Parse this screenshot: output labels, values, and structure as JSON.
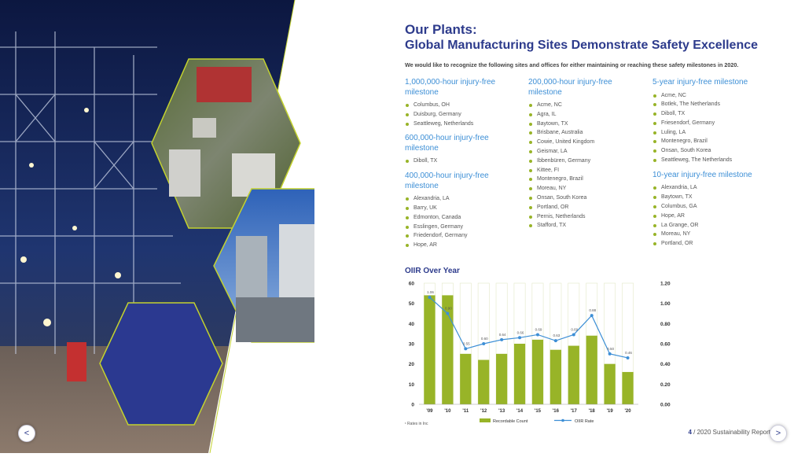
{
  "page": {
    "title": "Our Plants:",
    "subtitle": "Global Manufacturing Sites Demonstrate Safety Excellence",
    "intro": "We would like to recognize the following sites and offices for either maintaining or reaching these safety milestones in 2020."
  },
  "columns": [
    {
      "groups": [
        {
          "heading": "1,000,000-hour injury-free milestone",
          "items": [
            "Columbus, OH",
            "Duisburg, Germany",
            "Seattleweg, Netherlands"
          ]
        },
        {
          "heading": "600,000-hour injury-free milestone",
          "items": [
            "Diboll, TX"
          ]
        },
        {
          "heading": "400,000-hour injury-free milestone",
          "items": [
            "Alexandria, LA",
            "Barry, UK",
            "Edmonton, Canada",
            "Esslingen, Germany",
            "Friedendorf, Germany",
            "Hope, AR"
          ]
        }
      ]
    },
    {
      "groups": [
        {
          "heading": "200,000-hour injury-free milestone",
          "items": [
            "Acme, NC",
            "Agra, IL",
            "Baytown, TX",
            "Brisbane, Australia",
            "Cowie, United Kingdom",
            "Geismar, LA",
            "Ibbenbüren, Germany",
            "Kittee, FI",
            "Montenegro, Brazil",
            "Moreau, NY",
            "Onsan, South Korea",
            "Portland, OR",
            "Pernis, Netherlands",
            "Stafford, TX"
          ]
        }
      ]
    },
    {
      "groups": [
        {
          "heading": "5-year injury-free milestone",
          "items": [
            "Acme, NC",
            "Botlek, The Netherlands",
            "Diboll, TX",
            "Friesendorf, Germany",
            "Luling, LA",
            "Montenegro, Brazil",
            "Onsan, South Korea",
            "Seattleweg, The Netherlands"
          ]
        },
        {
          "heading": "10-year injury-free milestone",
          "items": [
            "Alexandria, LA",
            "Baytown, TX",
            "Columbus, GA",
            "Hope, AR",
            "La Grange, OR",
            "Moreau, NY",
            "Portland, OR"
          ]
        }
      ]
    }
  ],
  "chart_title": "OIIR Over Year",
  "chart_data": {
    "type": "bar",
    "categories": [
      "'09",
      "'10",
      "'11",
      "'12",
      "'13",
      "'14",
      "'15",
      "'16",
      "'17",
      "'18",
      "'19",
      "'20"
    ],
    "left_ticks": [
      "60",
      "50",
      "40",
      "30",
      "20",
      "10",
      "0"
    ],
    "right_ticks": [
      "1.20",
      "1.00",
      "0.80",
      "0.60",
      "0.40",
      "0.20",
      "0.00"
    ],
    "ylim": [
      0,
      60
    ],
    "y2lim": [
      0,
      1.2
    ],
    "series": [
      {
        "name": "Recordable Count",
        "type": "bar",
        "color": "#98b428",
        "values": [
          54,
          54,
          25,
          22,
          25,
          30,
          32,
          27,
          29,
          34,
          20,
          16
        ]
      },
      {
        "name": "OIIR Rate",
        "type": "line",
        "color": "#3d8fd6",
        "values": [
          1.06,
          0.9,
          0.55,
          0.6,
          0.64,
          0.66,
          0.69,
          0.63,
          0.69,
          0.88,
          0.5,
          0.46
        ]
      }
    ]
  },
  "footnote": "¹ Rates in Inc",
  "footer": {
    "page_number": "4",
    "label": " / 2020 Sustainability Report"
  },
  "nav": {
    "prev": "<",
    "next": ">"
  }
}
